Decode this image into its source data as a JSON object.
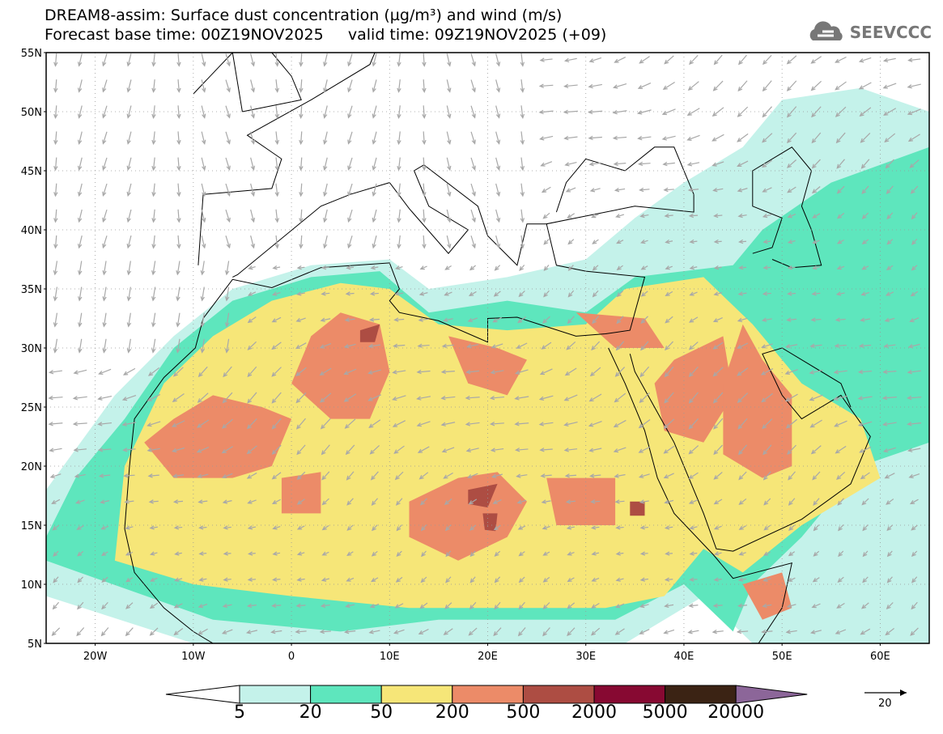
{
  "header": {
    "title_line1": "DREAM8-assim: Surface dust concentration (µg/m³) and wind (m/s)",
    "title_line2": "Forecast base time: 00Z19NOV2025     valid time: 09Z19NOV2025 (+09)",
    "logo_text": "SEEVCCC"
  },
  "map": {
    "lon_range": [
      -25,
      65
    ],
    "lat_range": [
      5,
      55
    ],
    "lat_labels": [
      "55N",
      "50N",
      "45N",
      "40N",
      "35N",
      "30N",
      "25N",
      "20N",
      "15N",
      "10N",
      "5N"
    ],
    "lon_labels": [
      "20W",
      "10W",
      "0",
      "10E",
      "20E",
      "30E",
      "40E",
      "50E",
      "60E"
    ]
  },
  "colorbar": {
    "levels": [
      "5",
      "20",
      "50",
      "200",
      "500",
      "2000",
      "5000",
      "20000"
    ],
    "colors": [
      "#ffffff",
      "#c4f2ea",
      "#5ee6bd",
      "#f6e678",
      "#ec8b68",
      "#ad4d43",
      "#870932",
      "#3b2314",
      "#8c6699"
    ]
  },
  "wind_reference": {
    "value": "20"
  }
}
